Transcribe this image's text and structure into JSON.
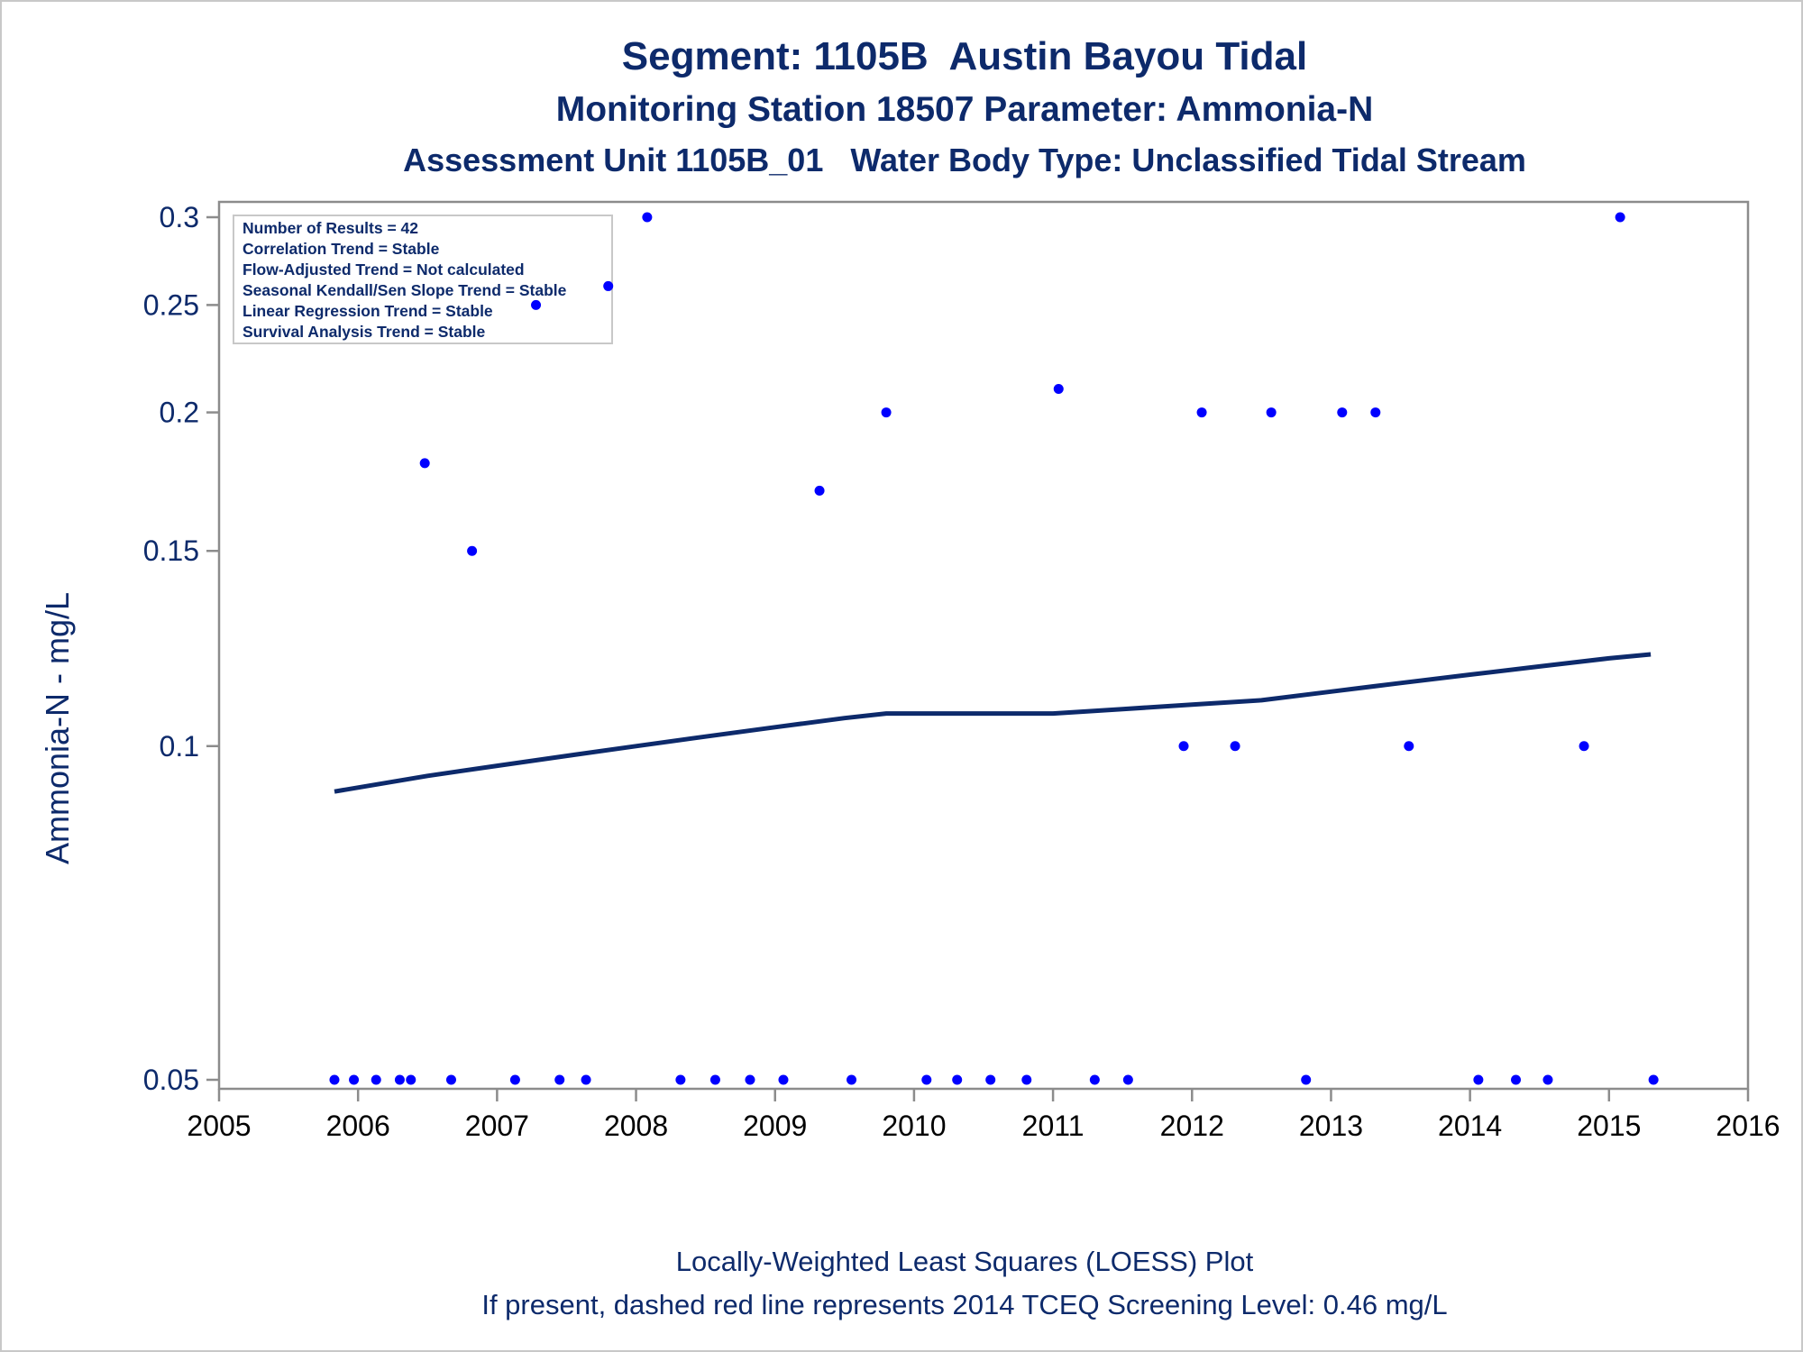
{
  "titles": {
    "line1": "Segment: 1105B  Austin Bayou Tidal",
    "line2": "Monitoring Station 18507 Parameter: Ammonia-N",
    "line3": "Assessment Unit 1105B_01   Water Body Type: Unclassified Tidal Stream"
  },
  "footnotes": {
    "line1": "Locally-Weighted Least Squares (LOESS) Plot",
    "line2": "If present, dashed red line represents 2014 TCEQ Screening Level: 0.46 mg/L"
  },
  "legend": [
    "Number of Results = 42",
    "Correlation Trend = Stable",
    "Flow-Adjusted Trend = Not calculated",
    "Seasonal Kendall/Sen Slope Trend = Stable",
    "Linear Regression Trend = Stable",
    "Survival Analysis Trend = Stable"
  ],
  "colors": {
    "text": "#0d2a6b",
    "points": "#0000ff",
    "loess": "#0d2a6b",
    "axis": "#8c8c8c"
  },
  "chart_data": {
    "type": "scatter",
    "ylabel": "Ammonia-N - mg/L",
    "xlabel": "",
    "xlim": [
      2005,
      2016
    ],
    "ylim": [
      0.05,
      0.3
    ],
    "yscale": "log",
    "xticks": [
      2005,
      2006,
      2007,
      2008,
      2009,
      2010,
      2011,
      2012,
      2013,
      2014,
      2015,
      2016
    ],
    "yticks": [
      0.05,
      0.1,
      0.15,
      0.2,
      0.25,
      0.3
    ],
    "ytick_labels": [
      "0.05",
      "0.1",
      "0.15",
      "0.2",
      "0.25",
      "0.3"
    ],
    "points": [
      [
        2005.83,
        0.05
      ],
      [
        2005.97,
        0.05
      ],
      [
        2006.13,
        0.05
      ],
      [
        2006.3,
        0.05
      ],
      [
        2006.38,
        0.05
      ],
      [
        2006.48,
        0.18
      ],
      [
        2006.67,
        0.05
      ],
      [
        2006.82,
        0.15
      ],
      [
        2007.13,
        0.05
      ],
      [
        2007.28,
        0.25
      ],
      [
        2007.45,
        0.05
      ],
      [
        2007.64,
        0.05
      ],
      [
        2007.8,
        0.26
      ],
      [
        2008.08,
        0.3
      ],
      [
        2008.32,
        0.05
      ],
      [
        2008.57,
        0.05
      ],
      [
        2008.82,
        0.05
      ],
      [
        2009.06,
        0.05
      ],
      [
        2009.32,
        0.17
      ],
      [
        2009.55,
        0.05
      ],
      [
        2009.8,
        0.2
      ],
      [
        2010.09,
        0.05
      ],
      [
        2010.31,
        0.05
      ],
      [
        2010.55,
        0.05
      ],
      [
        2010.81,
        0.05
      ],
      [
        2011.04,
        0.21
      ],
      [
        2011.3,
        0.05
      ],
      [
        2011.54,
        0.05
      ],
      [
        2011.94,
        0.1
      ],
      [
        2012.07,
        0.2
      ],
      [
        2012.31,
        0.1
      ],
      [
        2012.57,
        0.2
      ],
      [
        2012.82,
        0.05
      ],
      [
        2013.08,
        0.2
      ],
      [
        2013.32,
        0.2
      ],
      [
        2013.56,
        0.1
      ],
      [
        2014.06,
        0.05
      ],
      [
        2014.33,
        0.05
      ],
      [
        2014.56,
        0.05
      ],
      [
        2014.82,
        0.1
      ],
      [
        2015.08,
        0.3
      ],
      [
        2015.32,
        0.05
      ]
    ],
    "loess": [
      [
        2005.83,
        0.091
      ],
      [
        2006.5,
        0.094
      ],
      [
        2007.0,
        0.096
      ],
      [
        2007.5,
        0.098
      ],
      [
        2008.0,
        0.1
      ],
      [
        2008.5,
        0.102
      ],
      [
        2009.0,
        0.104
      ],
      [
        2009.5,
        0.106
      ],
      [
        2009.8,
        0.107
      ],
      [
        2010.5,
        0.107
      ],
      [
        2011.0,
        0.107
      ],
      [
        2011.5,
        0.108
      ],
      [
        2012.0,
        0.109
      ],
      [
        2012.5,
        0.11
      ],
      [
        2013.0,
        0.112
      ],
      [
        2013.5,
        0.114
      ],
      [
        2014.0,
        0.116
      ],
      [
        2014.5,
        0.118
      ],
      [
        2015.0,
        0.12
      ],
      [
        2015.3,
        0.121
      ]
    ]
  }
}
